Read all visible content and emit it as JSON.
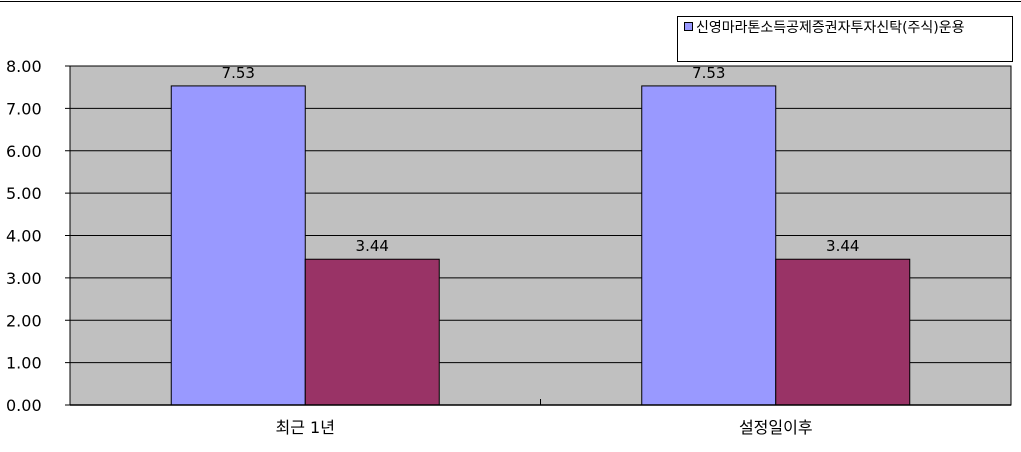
{
  "chart_data": {
    "type": "bar",
    "categories": [
      "최근 1년",
      "설정일이후"
    ],
    "series": [
      {
        "name": "신영마라톤소득공제증권자투자신탁(주식)운용",
        "values": [
          7.53,
          7.53
        ],
        "color": "#9999ff"
      },
      {
        "values": [
          3.44,
          3.44
        ],
        "color": "#993366"
      }
    ],
    "data_labels": [
      [
        "7.53",
        "7.53"
      ],
      [
        "3.44",
        "3.44"
      ]
    ],
    "y_ticks": [
      "0.00",
      "1.00",
      "2.00",
      "3.00",
      "4.00",
      "5.00",
      "6.00",
      "7.00",
      "8.00"
    ],
    "ylim": [
      0,
      8
    ],
    "grid": true,
    "plot_background": "#c0c0c0",
    "legend_position": "top-right"
  }
}
